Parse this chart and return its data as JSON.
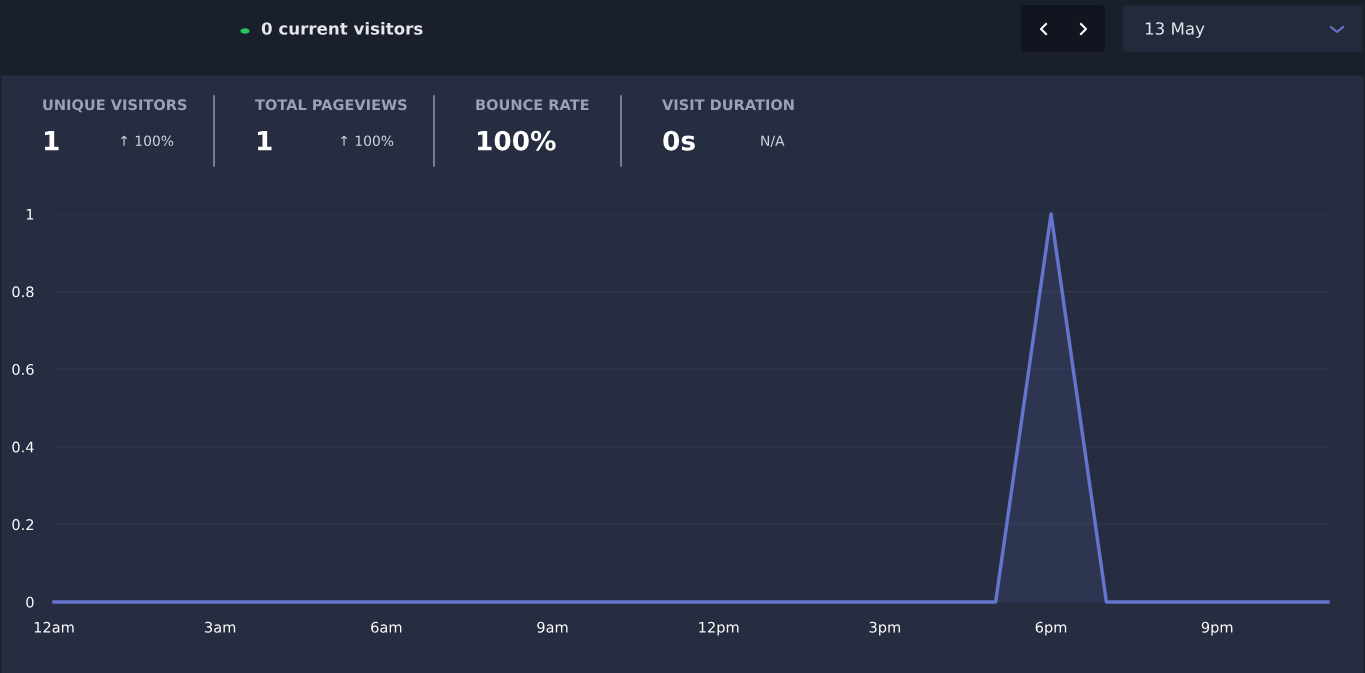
{
  "chart_data": {
    "type": "area",
    "categories": [
      "12am",
      null,
      null,
      "3am",
      null,
      null,
      "6am",
      null,
      null,
      "9am",
      null,
      null,
      "12pm",
      null,
      null,
      "3pm",
      null,
      null,
      "6pm",
      null,
      null,
      "9pm",
      null,
      null
    ],
    "series": [
      {
        "color": "#6574cd",
        "values": [
          0,
          0,
          0,
          0,
          0,
          0,
          0,
          0,
          0,
          0,
          0,
          0,
          0,
          0,
          0,
          0,
          0,
          0,
          1,
          0,
          0,
          0,
          0,
          0
        ]
      }
    ],
    "ylim": [
      0,
      1
    ],
    "yticks": [
      0,
      0.2,
      0.4,
      0.6,
      0.8,
      1
    ],
    "grid": "y",
    "legend": false,
    "marker": "none",
    "line_style": "solid",
    "annotations": [
      "0 current visitors",
      "13 May",
      "UNIQUE VISITORS",
      "1",
      "↑ 100%",
      "TOTAL PAGEVIEWS",
      "1",
      "↑ 100%",
      "BOUNCE RATE",
      "100%",
      "VISIT DURATION",
      "0s",
      "N/A"
    ]
  }
}
